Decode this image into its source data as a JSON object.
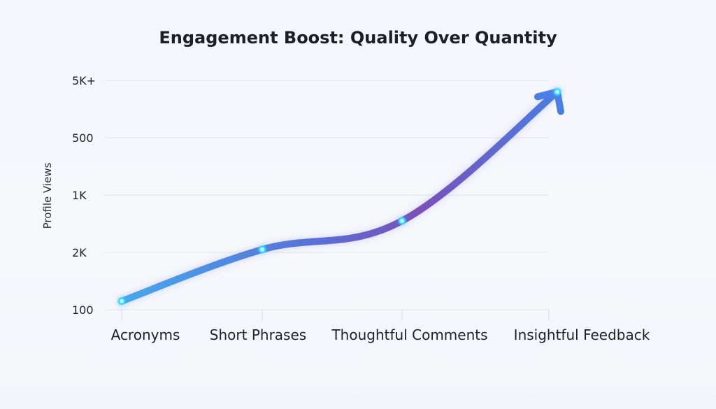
{
  "chart_data": {
    "type": "line",
    "title": "Engagement Boost: Quality Over Quantity",
    "xlabel": "",
    "ylabel": "Profile Views",
    "categories": [
      "Acronyms",
      "Short Phrases",
      "Thoughtful Comments",
      "Insightful Feedback"
    ],
    "y_tick_labels": [
      "100",
      "2K",
      "1K",
      "500",
      "5K+"
    ],
    "series": [
      {
        "values": [
          0.15,
          1.05,
          1.55,
          3.8
        ]
      }
    ],
    "ylim": [
      0,
      4
    ],
    "grid": true,
    "legend": "none",
    "colors": {
      "start": "#45a8ec",
      "middle": "#7a4fb8",
      "end": "#4a7ee2",
      "point": "#35d6ff"
    }
  }
}
